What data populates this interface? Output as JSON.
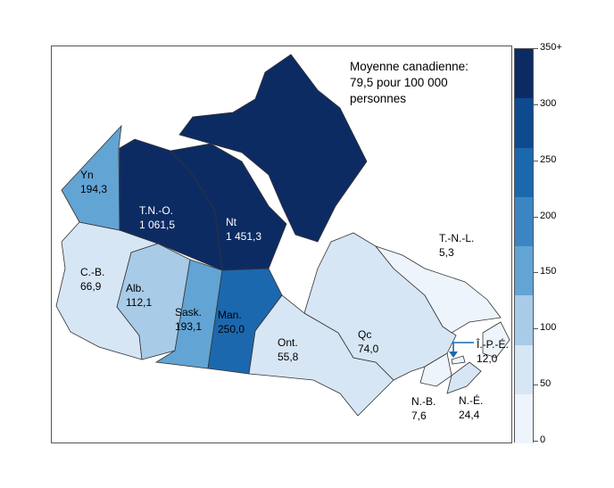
{
  "national_note": {
    "line1": "Moyenne canadienne:",
    "line2": "79,5 pour 100 000",
    "line3": "personnes"
  },
  "regions": [
    {
      "id": "yn",
      "name": "Yn",
      "value": "194,3"
    },
    {
      "id": "tno",
      "name": "T.N.-O.",
      "value": "1 061,5"
    },
    {
      "id": "nt",
      "name": "Nt",
      "value": "1 451,3"
    },
    {
      "id": "cb",
      "name": "C.-B.",
      "value": "66,9"
    },
    {
      "id": "alb",
      "name": "Alb.",
      "value": "112,1"
    },
    {
      "id": "sask",
      "name": "Sask.",
      "value": "193,1"
    },
    {
      "id": "man",
      "name": "Man.",
      "value": "250,0"
    },
    {
      "id": "ont",
      "name": "Ont.",
      "value": "55,8"
    },
    {
      "id": "qc",
      "name": "Qc",
      "value": "74,0"
    },
    {
      "id": "tnl",
      "name": "T.-N.-L.",
      "value": "5,3"
    },
    {
      "id": "ipe",
      "name": "Î.-P.-É.",
      "value": "12,0"
    },
    {
      "id": "nb",
      "name": "N.-B.",
      "value": "7,6"
    },
    {
      "id": "ne",
      "name": "N.-É.",
      "value": "24,4"
    }
  ],
  "legend": {
    "ticks": [
      "350+",
      "300",
      "250",
      "200",
      "150",
      "100",
      "50",
      "0"
    ],
    "colors": [
      "#0d2b63",
      "#0e4a8e",
      "#1c68ae",
      "#3b86c2",
      "#62a4d4",
      "#a8cbe7",
      "#d7e6f5",
      "#eef4fb"
    ]
  }
}
